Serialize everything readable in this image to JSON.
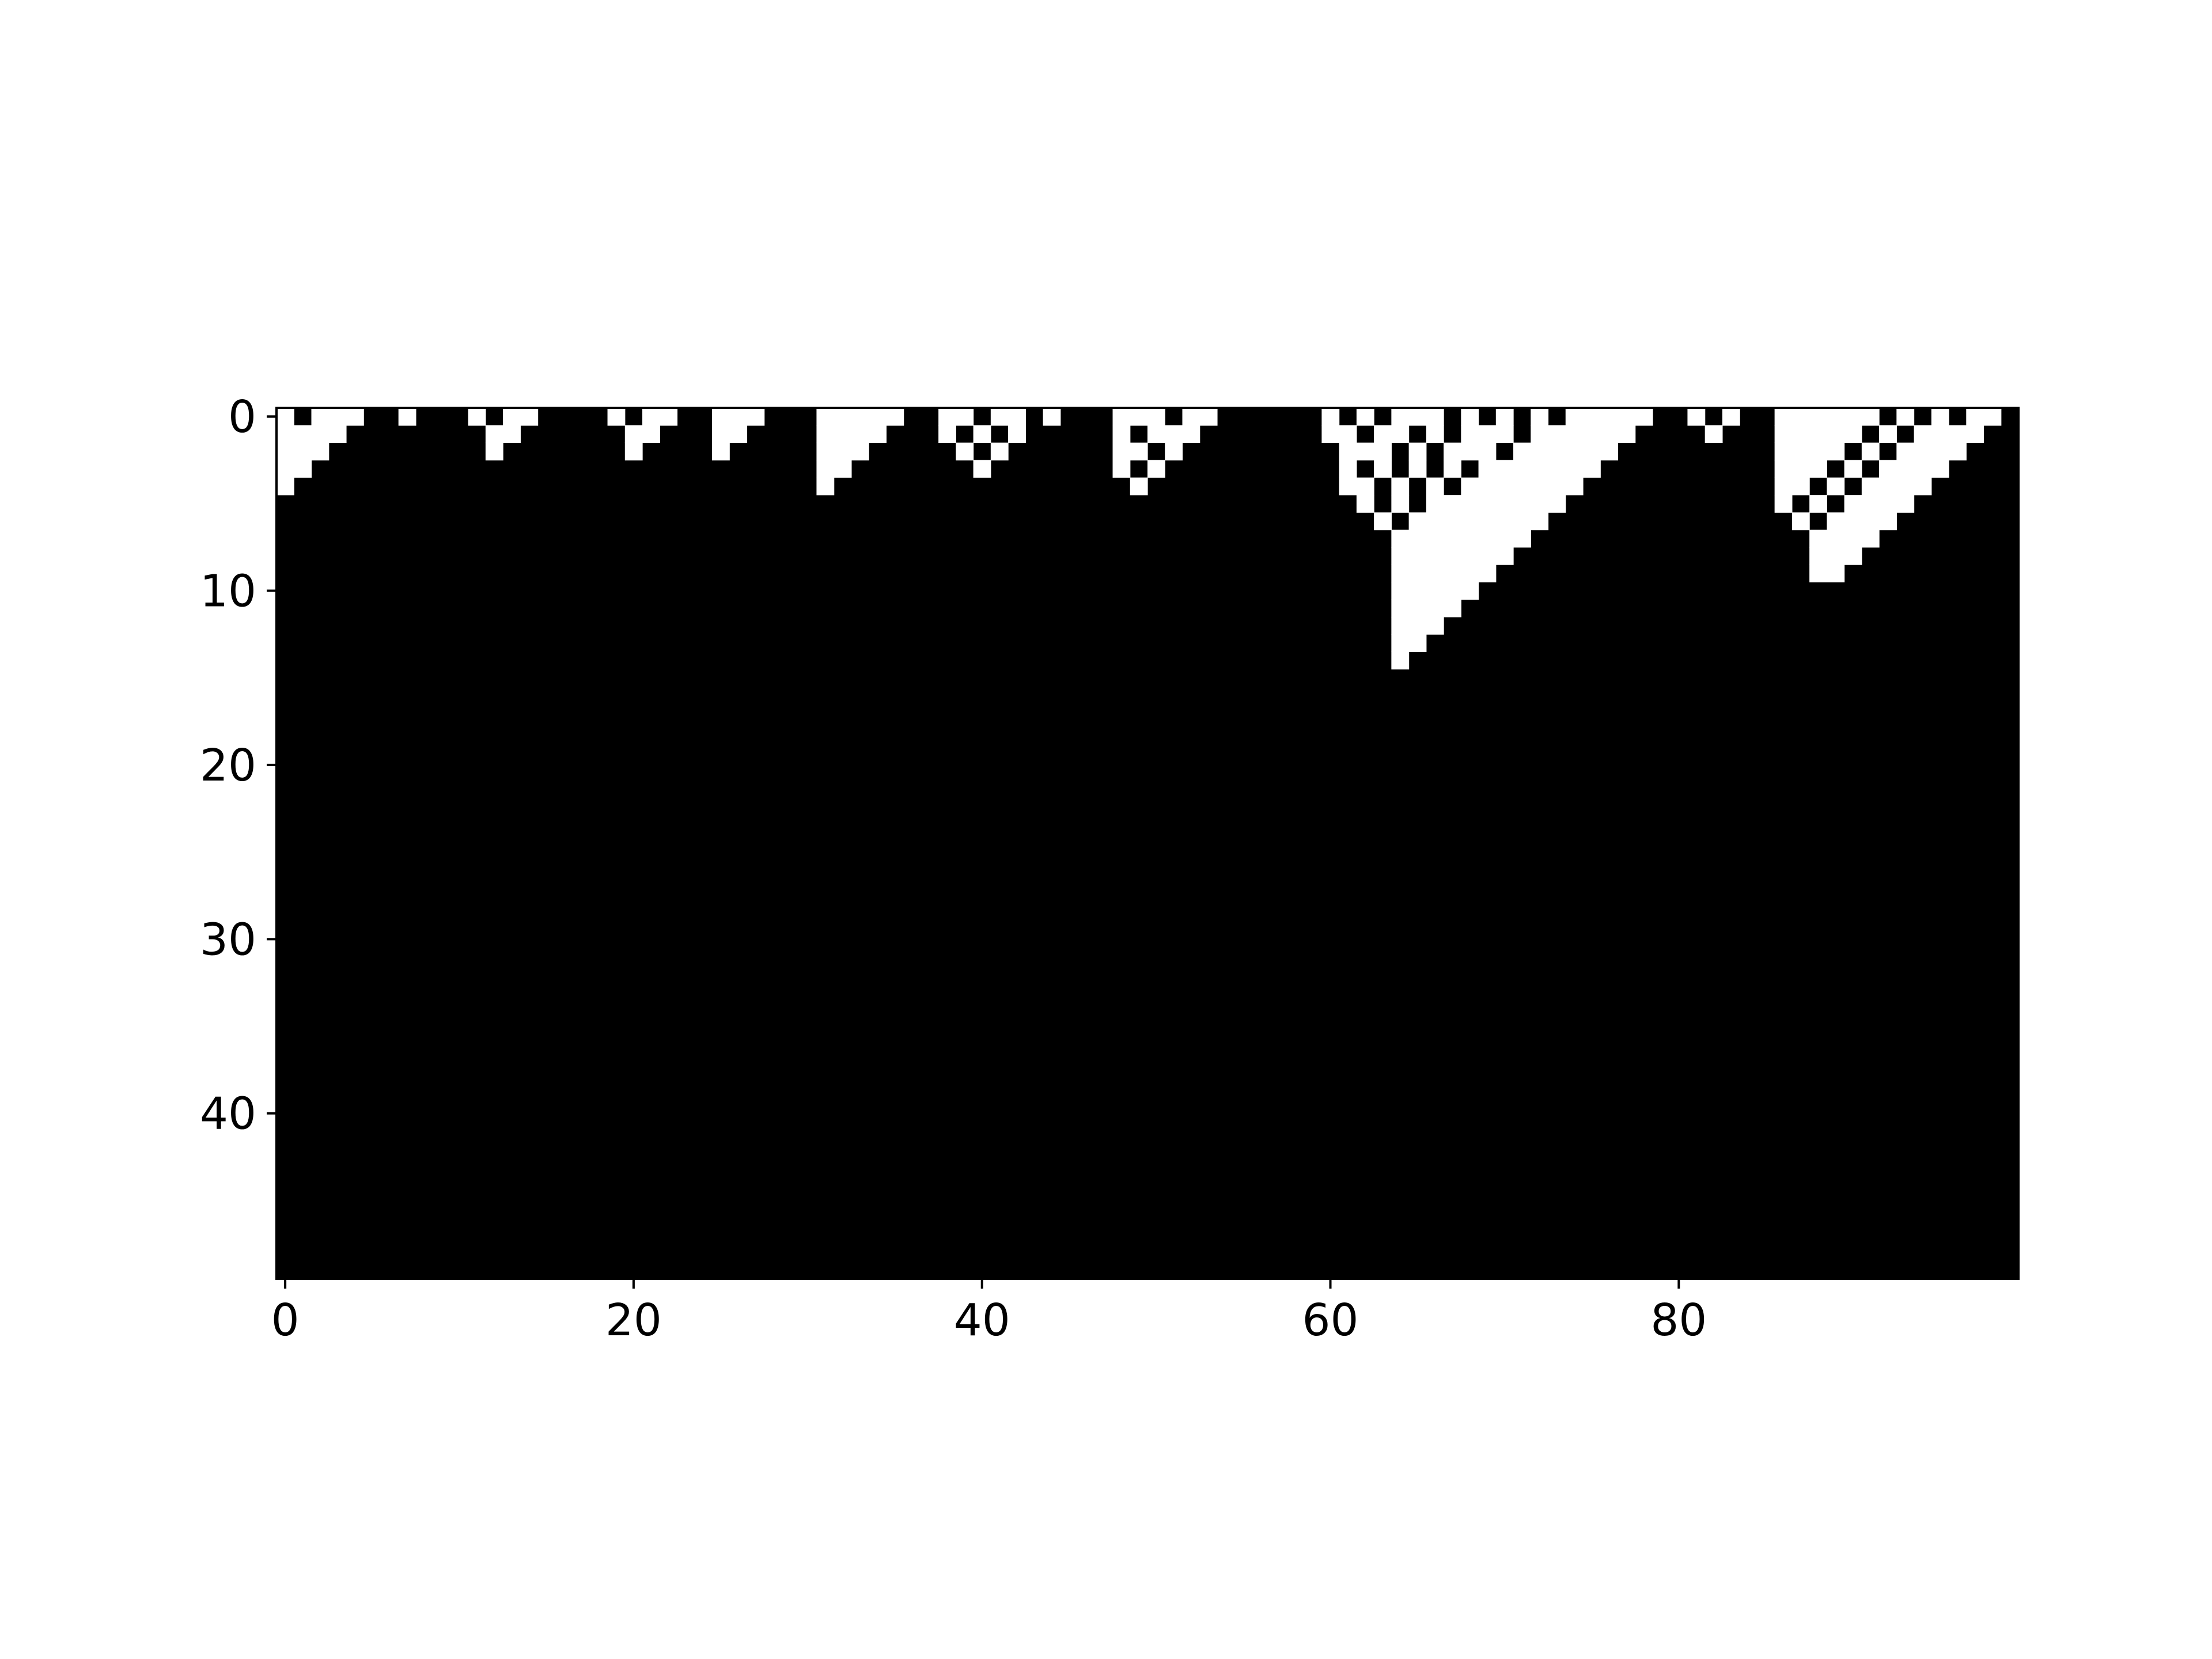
{
  "chart_data": {
    "type": "heatmap",
    "title": "",
    "xlabel": "",
    "ylabel": "",
    "colormap": "gray",
    "colors": {
      "on": "#ffffff",
      "off": "#000000"
    },
    "cols": 100,
    "rows": 50,
    "xlim": [
      -0.5,
      99.5
    ],
    "ylim": [
      49.5,
      -0.5
    ],
    "xticks": [
      0,
      20,
      40,
      60,
      80
    ],
    "yticks": [
      0,
      10,
      20,
      30,
      40
    ],
    "xtick_labels": [
      "0",
      "20",
      "40",
      "60",
      "80"
    ],
    "ytick_labels": [
      "0",
      "10",
      "20",
      "30",
      "40"
    ],
    "cell_rows": [
      {
        "row": 0,
        "runs": [
          [
            0,
            0
          ],
          [
            2,
            4
          ],
          [
            7,
            7
          ],
          [
            11,
            11
          ],
          [
            13,
            14
          ],
          [
            19,
            19
          ],
          [
            21,
            22
          ],
          [
            25,
            27
          ],
          [
            31,
            35
          ],
          [
            38,
            39
          ],
          [
            41,
            42
          ],
          [
            44,
            44
          ],
          [
            48,
            50
          ],
          [
            52,
            53
          ],
          [
            60,
            60
          ],
          [
            62,
            62
          ],
          [
            64,
            66
          ],
          [
            68,
            68
          ],
          [
            70,
            70
          ],
          [
            72,
            72
          ],
          [
            74,
            78
          ],
          [
            81,
            81
          ],
          [
            83,
            83
          ],
          [
            86,
            91
          ],
          [
            93,
            93
          ],
          [
            95,
            95
          ],
          [
            97,
            98
          ]
        ]
      },
      {
        "row": 1,
        "runs": [
          [
            0,
            3
          ],
          [
            12,
            13
          ],
          [
            20,
            21
          ],
          [
            25,
            26
          ],
          [
            31,
            34
          ],
          [
            38,
            38
          ],
          [
            40,
            40
          ],
          [
            42,
            42
          ],
          [
            48,
            48
          ],
          [
            50,
            52
          ],
          [
            60,
            61
          ],
          [
            63,
            64
          ],
          [
            66,
            66
          ],
          [
            68,
            70
          ],
          [
            72,
            77
          ],
          [
            82,
            82
          ],
          [
            86,
            90
          ],
          [
            92,
            92
          ],
          [
            94,
            97
          ]
        ]
      },
      {
        "row": 2,
        "runs": [
          [
            0,
            2
          ],
          [
            12,
            12
          ],
          [
            20,
            20
          ],
          [
            25,
            25
          ],
          [
            31,
            33
          ],
          [
            39,
            39
          ],
          [
            41,
            41
          ],
          [
            48,
            49
          ],
          [
            51,
            51
          ],
          [
            61,
            63
          ],
          [
            65,
            65
          ],
          [
            67,
            69
          ],
          [
            71,
            76
          ],
          [
            86,
            89
          ],
          [
            91,
            91
          ],
          [
            93,
            96
          ]
        ]
      },
      {
        "row": 3,
        "runs": [
          [
            0,
            1
          ],
          [
            31,
            32
          ],
          [
            40,
            40
          ],
          [
            48,
            48
          ],
          [
            50,
            50
          ],
          [
            61,
            61
          ],
          [
            63,
            63
          ],
          [
            65,
            65
          ],
          [
            67,
            67
          ],
          [
            69,
            75
          ],
          [
            86,
            88
          ],
          [
            90,
            90
          ],
          [
            92,
            95
          ]
        ]
      },
      {
        "row": 4,
        "runs": [
          [
            0,
            0
          ],
          [
            31,
            31
          ],
          [
            49,
            49
          ],
          [
            61,
            62
          ],
          [
            64,
            64
          ],
          [
            66,
            66
          ],
          [
            68,
            74
          ],
          [
            86,
            87
          ],
          [
            89,
            89
          ],
          [
            91,
            94
          ]
        ]
      },
      {
        "row": 5,
        "runs": [
          [
            62,
            62
          ],
          [
            64,
            64
          ],
          [
            66,
            73
          ],
          [
            86,
            86
          ],
          [
            88,
            88
          ],
          [
            90,
            93
          ]
        ]
      },
      {
        "row": 6,
        "runs": [
          [
            63,
            63
          ],
          [
            65,
            72
          ],
          [
            87,
            87
          ],
          [
            89,
            92
          ]
        ]
      },
      {
        "row": 7,
        "runs": [
          [
            64,
            71
          ],
          [
            88,
            91
          ]
        ]
      },
      {
        "row": 8,
        "runs": [
          [
            64,
            70
          ],
          [
            88,
            90
          ]
        ]
      },
      {
        "row": 9,
        "runs": [
          [
            64,
            69
          ],
          [
            88,
            89
          ]
        ]
      },
      {
        "row": 10,
        "runs": [
          [
            64,
            68
          ]
        ]
      },
      {
        "row": 11,
        "runs": [
          [
            64,
            67
          ]
        ]
      },
      {
        "row": 12,
        "runs": [
          [
            64,
            66
          ]
        ]
      },
      {
        "row": 13,
        "runs": [
          [
            64,
            65
          ]
        ]
      },
      {
        "row": 14,
        "runs": [
          [
            64,
            64
          ]
        ]
      }
    ]
  }
}
